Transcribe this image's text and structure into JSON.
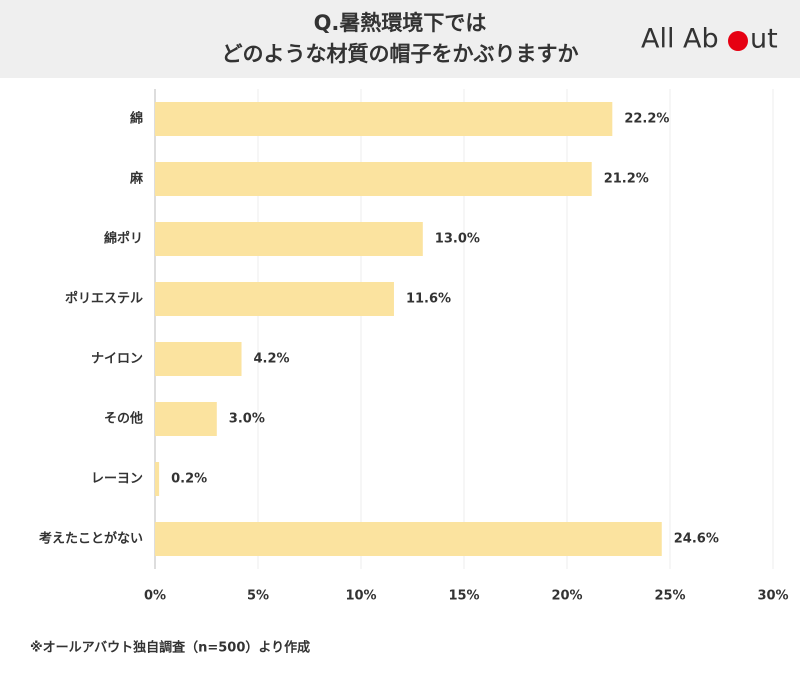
{
  "chart_data": {
    "type": "bar",
    "orientation": "horizontal",
    "title_lines": [
      "Q.暑熱環境下では",
      "どのような材質の帽子をかぶりますか"
    ],
    "logo_left": "All Ab",
    "logo_right": "ut",
    "categories": [
      "綿",
      "麻",
      "綿ポリ",
      "ポリエステル",
      "ナイロン",
      "その他",
      "レーヨン",
      "考えたことがない"
    ],
    "values": [
      22.2,
      21.2,
      13.0,
      11.6,
      4.2,
      3.0,
      0.2,
      24.6
    ],
    "value_labels": [
      "22.2%",
      "21.2%",
      "13.0%",
      "11.6%",
      "4.2%",
      "3.0%",
      "0.2%",
      "24.6%"
    ],
    "color": "#fbe39f",
    "xlim": [
      0,
      30
    ],
    "xticks": [
      {
        "value": 0,
        "label": "0%"
      },
      {
        "value": 5,
        "label": "5%"
      },
      {
        "value": 10,
        "label": "10%"
      },
      {
        "value": 15,
        "label": "15%"
      },
      {
        "value": 20,
        "label": "20%"
      },
      {
        "value": 25,
        "label": "25%"
      },
      {
        "value": 30,
        "label": "30%"
      }
    ],
    "grid": true,
    "footnote": "※オールアバウト独自調査（n=500）より作成"
  }
}
